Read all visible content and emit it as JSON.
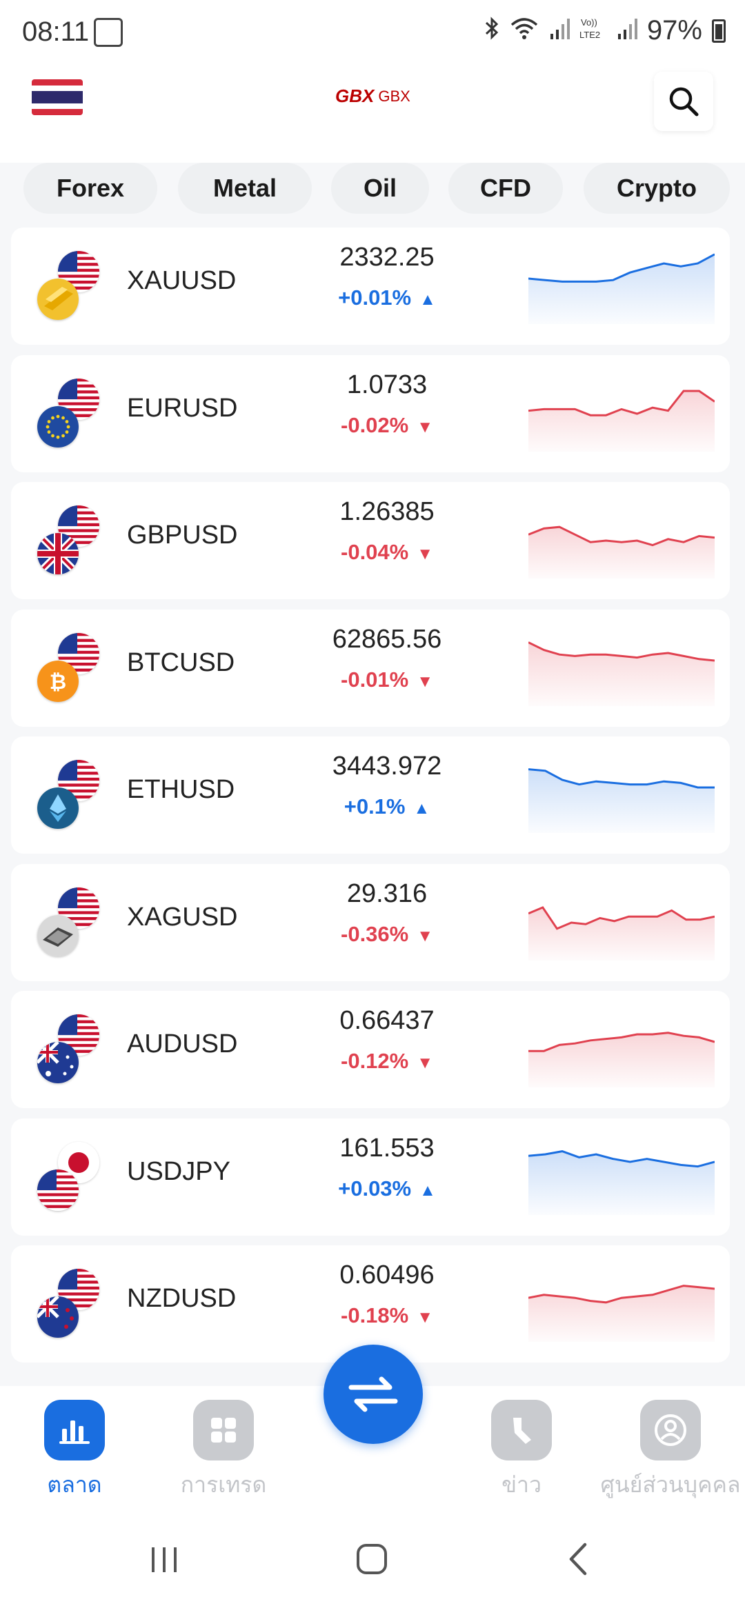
{
  "status_bar": {
    "time": "08:11",
    "battery": "97%"
  },
  "header": {
    "logo_mark": "GBX",
    "logo_text": "GBX"
  },
  "tabs": [
    "Forex",
    "Metal",
    "Oil",
    "CFD",
    "Crypto"
  ],
  "instruments": [
    {
      "symbol": "XAUUSD",
      "price": "2332.25",
      "change": "+0.01%",
      "direction": "up",
      "front_flag": "gold-icon",
      "back_flag": "us-flag-icon",
      "spark": [
        60,
        58,
        56,
        56,
        56,
        58,
        68,
        74,
        80,
        76,
        80,
        92
      ]
    },
    {
      "symbol": "EURUSD",
      "price": "1.0733",
      "change": "-0.02%",
      "direction": "down",
      "front_flag": "eu-flag-icon",
      "back_flag": "us-flag-icon",
      "spark": [
        54,
        56,
        56,
        56,
        48,
        48,
        56,
        50,
        58,
        54,
        80,
        80,
        66
      ]
    },
    {
      "symbol": "GBPUSD",
      "price": "1.26385",
      "change": "-0.04%",
      "direction": "down",
      "front_flag": "uk-flag-icon",
      "back_flag": "us-flag-icon",
      "spark": [
        58,
        66,
        68,
        58,
        48,
        50,
        48,
        50,
        44,
        52,
        48,
        56,
        54
      ]
    },
    {
      "symbol": "BTCUSD",
      "price": "62865.56",
      "change": "-0.01%",
      "direction": "down",
      "front_flag": "bitcoin-icon",
      "back_flag": "us-flag-icon",
      "spark": [
        84,
        74,
        68,
        66,
        68,
        68,
        66,
        64,
        68,
        70,
        66,
        62,
        60
      ]
    },
    {
      "symbol": "ETHUSD",
      "price": "3443.972",
      "change": "+0.1%",
      "direction": "up",
      "front_flag": "ethereum-icon",
      "back_flag": "us-flag-icon",
      "spark": [
        84,
        82,
        70,
        64,
        68,
        66,
        64,
        64,
        68,
        66,
        60,
        60
      ]
    },
    {
      "symbol": "XAGUSD",
      "price": "29.316",
      "change": "-0.36%",
      "direction": "down",
      "front_flag": "silver-icon",
      "back_flag": "us-flag-icon",
      "spark": [
        62,
        70,
        42,
        50,
        48,
        56,
        52,
        58,
        58,
        58,
        66,
        54,
        54,
        58
      ]
    },
    {
      "symbol": "AUDUSD",
      "price": "0.66437",
      "change": "-0.12%",
      "direction": "down",
      "front_flag": "au-flag-icon",
      "back_flag": "us-flag-icon",
      "spark": [
        48,
        48,
        56,
        58,
        62,
        64,
        66,
        70,
        70,
        72,
        68,
        66,
        60
      ]
    },
    {
      "symbol": "USDJPY",
      "price": "161.553",
      "change": "+0.03%",
      "direction": "up",
      "front_flag": "us-flag-icon",
      "back_flag": "jp-flag-icon",
      "spark": [
        78,
        80,
        84,
        76,
        80,
        74,
        70,
        74,
        70,
        66,
        64,
        70
      ]
    },
    {
      "symbol": "NZDUSD",
      "price": "0.60496",
      "change": "-0.18%",
      "direction": "down",
      "front_flag": "nz-flag-icon",
      "back_flag": "us-flag-icon",
      "spark": [
        58,
        62,
        60,
        58,
        54,
        52,
        58,
        60,
        62,
        68,
        74,
        72,
        70
      ]
    }
  ],
  "bottom_nav": [
    {
      "label": "ตลาด",
      "icon": "market-chart-icon",
      "active": true
    },
    {
      "label": "การเทรด",
      "icon": "trade-grid-icon",
      "active": false
    },
    {
      "label": "ข่าว",
      "icon": "news-icon",
      "active": false
    },
    {
      "label": "ศูนย์ส่วนบุคคล",
      "icon": "profile-icon",
      "active": false
    }
  ],
  "fab": {
    "icon": "swap-arrows-icon"
  },
  "colors": {
    "accent": "#1a6ee0",
    "up": "#1a6ee0",
    "down": "#e0414f"
  }
}
